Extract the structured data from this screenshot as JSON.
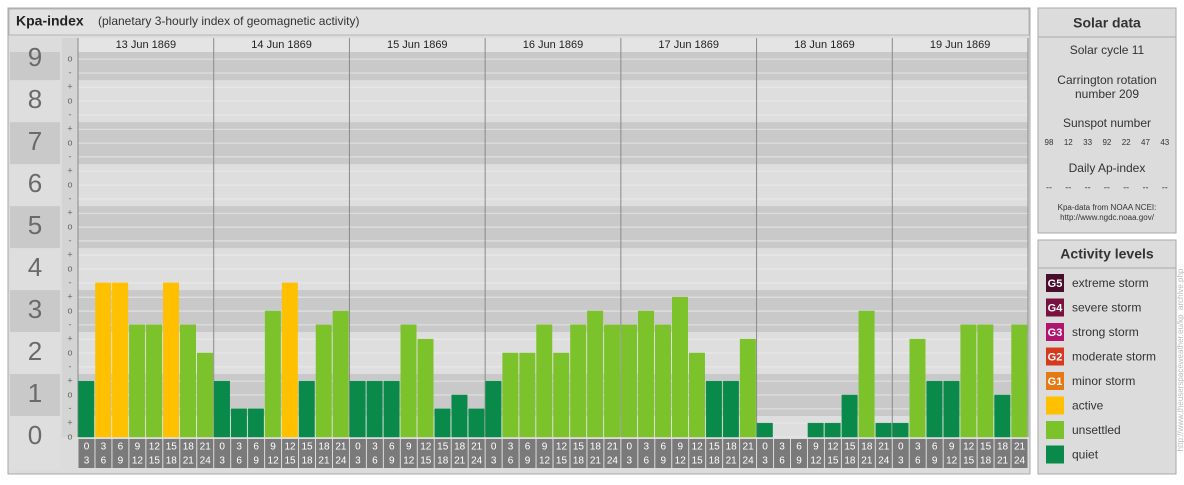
{
  "chart_data": {
    "type": "bar",
    "title": "Kpa-index",
    "subtitle": "(planetary 3-hourly index of geomagnetic activity)",
    "hour_starts": [
      0,
      3,
      6,
      9,
      12,
      15,
      18,
      21
    ],
    "hour_ends": [
      3,
      6,
      9,
      12,
      15,
      18,
      21,
      24
    ],
    "days": [
      {
        "date": "13 Jun 1869",
        "values": [
          1.33,
          3.67,
          3.67,
          2.67,
          2.67,
          3.67,
          2.67,
          2.0
        ],
        "colors": [
          "#0a8a4a",
          "#ffc000",
          "#ffc000",
          "#7cc22a",
          "#7cc22a",
          "#ffc000",
          "#7cc22a",
          "#7cc22a"
        ]
      },
      {
        "date": "14 Jun 1869",
        "values": [
          1.33,
          0.67,
          0.67,
          3.0,
          3.67,
          1.33,
          2.67,
          3.0
        ],
        "colors": [
          "#0a8a4a",
          "#0a8a4a",
          "#0a8a4a",
          "#7cc22a",
          "#ffc000",
          "#0a8a4a",
          "#7cc22a",
          "#7cc22a"
        ]
      },
      {
        "date": "15 Jun 1869",
        "values": [
          1.33,
          1.33,
          1.33,
          2.67,
          2.33,
          0.67,
          1.0,
          0.67
        ],
        "colors": [
          "#0a8a4a",
          "#0a8a4a",
          "#0a8a4a",
          "#7cc22a",
          "#7cc22a",
          "#0a8a4a",
          "#0a8a4a",
          "#0a8a4a"
        ]
      },
      {
        "date": "16 Jun 1869",
        "values": [
          1.33,
          2.0,
          2.0,
          2.67,
          2.0,
          2.67,
          3.0,
          2.67
        ],
        "colors": [
          "#0a8a4a",
          "#7cc22a",
          "#7cc22a",
          "#7cc22a",
          "#7cc22a",
          "#7cc22a",
          "#7cc22a",
          "#7cc22a"
        ]
      },
      {
        "date": "17 Jun 1869",
        "values": [
          2.67,
          3.0,
          2.67,
          3.33,
          2.0,
          1.33,
          1.33,
          2.33
        ],
        "colors": [
          "#7cc22a",
          "#7cc22a",
          "#7cc22a",
          "#7cc22a",
          "#7cc22a",
          "#0a8a4a",
          "#0a8a4a",
          "#7cc22a"
        ]
      },
      {
        "date": "18 Jun 1869",
        "values": [
          0.33,
          0,
          0,
          0.33,
          0.33,
          1.0,
          3.0,
          0.33
        ],
        "colors": [
          "#0a8a4a",
          "#0a8a4a",
          "#0a8a4a",
          "#0a8a4a",
          "#0a8a4a",
          "#0a8a4a",
          "#7cc22a",
          "#0a8a4a"
        ]
      },
      {
        "date": "19 Jun 1869",
        "values": [
          0.33,
          2.33,
          1.33,
          1.33,
          2.67,
          2.67,
          1.0,
          2.67
        ],
        "colors": [
          "#0a8a4a",
          "#7cc22a",
          "#0a8a4a",
          "#0a8a4a",
          "#7cc22a",
          "#7cc22a",
          "#0a8a4a",
          "#7cc22a"
        ]
      }
    ],
    "ylim": [
      0,
      9.17
    ],
    "yticks": [
      0,
      1,
      2,
      3,
      4,
      5,
      6,
      7,
      8,
      9
    ],
    "minor_ticks": [
      {
        "value": 0,
        "label": "o"
      },
      {
        "value": 0.33,
        "label": "+"
      },
      {
        "value": 0.67,
        "label": "-"
      },
      {
        "value": 1,
        "label": "o"
      },
      {
        "value": 1.33,
        "label": "+"
      },
      {
        "value": 1.67,
        "label": "-"
      },
      {
        "value": 2,
        "label": "o"
      },
      {
        "value": 2.33,
        "label": "+"
      },
      {
        "value": 2.67,
        "label": "-"
      },
      {
        "value": 3,
        "label": "o"
      },
      {
        "value": 3.33,
        "label": "+"
      },
      {
        "value": 3.67,
        "label": "-"
      },
      {
        "value": 4,
        "label": "o"
      },
      {
        "value": 4.33,
        "label": "+"
      },
      {
        "value": 4.67,
        "label": "-"
      },
      {
        "value": 5,
        "label": "o"
      },
      {
        "value": 5.33,
        "label": "+"
      },
      {
        "value": 5.67,
        "label": "-"
      },
      {
        "value": 6,
        "label": "o"
      },
      {
        "value": 6.33,
        "label": "+"
      },
      {
        "value": 6.67,
        "label": "-"
      },
      {
        "value": 7,
        "label": "o"
      },
      {
        "value": 7.33,
        "label": "+"
      },
      {
        "value": 7.67,
        "label": "-"
      },
      {
        "value": 8,
        "label": "o"
      },
      {
        "value": 8.33,
        "label": "+"
      },
      {
        "value": 8.67,
        "label": "-"
      },
      {
        "value": 9,
        "label": "o"
      }
    ],
    "grid": true
  },
  "solar_data": {
    "title": "Solar data",
    "cycle": "Solar cycle 11",
    "carrington": [
      "Carrington rotation",
      "number 209"
    ],
    "sunspot_title": "Sunspot number",
    "sunspots": [
      98,
      12,
      33,
      92,
      22,
      47,
      43
    ],
    "ap_title": "Daily Ap-index",
    "ap_values": [
      "--",
      "--",
      "--",
      "--",
      "--",
      "--",
      "--"
    ],
    "source": [
      "Kpa-data from NOAA NCEI:",
      "http://www.ngdc.noaa.gov/"
    ]
  },
  "activity_levels": {
    "title": "Activity levels",
    "items": [
      {
        "code": "G5",
        "label": "extreme storm",
        "color": "#4a0d2c"
      },
      {
        "code": "G4",
        "label": "severe storm",
        "color": "#7a1040"
      },
      {
        "code": "G3",
        "label": "strong storm",
        "color": "#b0156d"
      },
      {
        "code": "G2",
        "label": "moderate storm",
        "color": "#d53a1f"
      },
      {
        "code": "G1",
        "label": "minor storm",
        "color": "#e57a14"
      },
      {
        "label": "active",
        "color": "#ffc000"
      },
      {
        "label": "unsettled",
        "color": "#7cc22a"
      },
      {
        "label": "quiet",
        "color": "#0a8a4a"
      }
    ]
  },
  "side_url": "http://www.theuserspaceweather.eu/kp_archive.php"
}
